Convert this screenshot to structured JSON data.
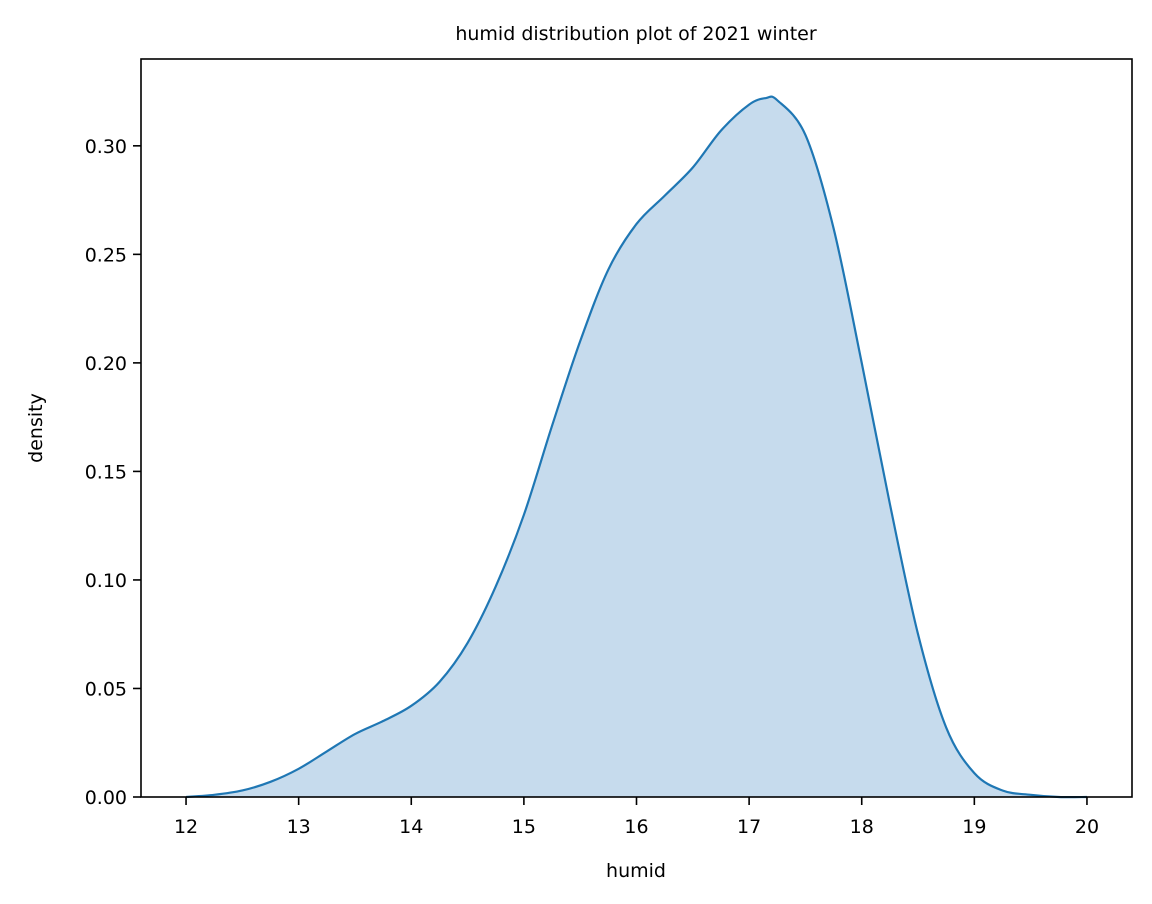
{
  "chart_data": {
    "type": "area",
    "title": "humid distribution plot of 2021 winter",
    "xlabel": "humid",
    "ylabel": "density",
    "xlim": [
      11.6,
      20.4
    ],
    "ylim": [
      0.0,
      0.34
    ],
    "x_ticks": [
      "12",
      "13",
      "14",
      "15",
      "16",
      "17",
      "18",
      "19",
      "20"
    ],
    "y_ticks": [
      "0.00",
      "0.05",
      "0.10",
      "0.15",
      "0.20",
      "0.25",
      "0.30"
    ],
    "grid": false,
    "legend": "none",
    "line_color": "#1f77b4",
    "fill_color": "#c6dbed",
    "series": [
      {
        "x": [
          12.0,
          12.25,
          12.5,
          12.75,
          13.0,
          13.25,
          13.5,
          13.75,
          14.0,
          14.25,
          14.5,
          14.75,
          15.0,
          15.25,
          15.5,
          15.75,
          16.0,
          16.25,
          16.5,
          16.75,
          17.0,
          17.15,
          17.25,
          17.5,
          17.75,
          18.0,
          18.25,
          18.5,
          18.75,
          19.0,
          19.25,
          19.5,
          19.75,
          20.0
        ],
        "y": [
          0.0,
          0.001,
          0.003,
          0.007,
          0.013,
          0.021,
          0.029,
          0.035,
          0.042,
          0.053,
          0.071,
          0.097,
          0.13,
          0.171,
          0.21,
          0.243,
          0.264,
          0.277,
          0.29,
          0.307,
          0.319,
          0.322,
          0.321,
          0.305,
          0.262,
          0.2,
          0.135,
          0.075,
          0.032,
          0.011,
          0.003,
          0.001,
          0.0,
          0.0
        ]
      }
    ]
  }
}
